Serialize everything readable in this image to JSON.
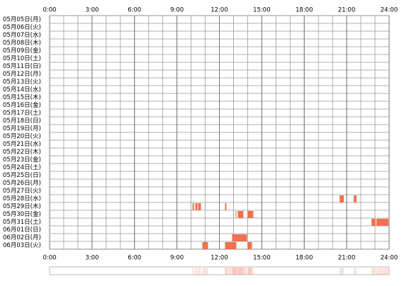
{
  "chart_data": {
    "type": "timeline",
    "categories": [
      "05月05日(月)",
      "05月06日(火)",
      "05月07日(水)",
      "05月08日(木)",
      "05月09日(金)",
      "05月10日(土)",
      "05月11日(日)",
      "05月12日(月)",
      "05月13日(火)",
      "05月14日(水)",
      "05月15日(木)",
      "05月16日(金)",
      "05月17日(土)",
      "05月18日(日)",
      "05月19日(月)",
      "05月20日(火)",
      "05月21日(水)",
      "05月22日(木)",
      "05月23日(金)",
      "05月24日(土)",
      "05月25日(日)",
      "05月26日(月)",
      "05月27日(火)",
      "05月28日(水)",
      "05月29日(木)",
      "05月30日(金)",
      "05月31日(土)",
      "06月01日(日)",
      "06月02日(月)",
      "06月03日(火)"
    ],
    "segments": [
      [],
      [],
      [],
      [],
      [],
      [],
      [],
      [],
      [],
      [],
      [],
      [],
      [],
      [],
      [],
      [],
      [],
      [],
      [],
      [],
      [],
      [],
      [],
      [
        [
          20.5,
          20.8
        ],
        [
          21.5,
          21.7
        ]
      ],
      [
        [
          10.1,
          10.2
        ],
        [
          10.3,
          10.45
        ],
        [
          10.5,
          10.7
        ],
        [
          12.4,
          12.5
        ]
      ],
      [
        [
          13.15,
          13.2
        ],
        [
          13.3,
          13.7
        ],
        [
          14.0,
          14.4
        ]
      ],
      [
        [
          22.75,
          23.05
        ],
        [
          23.1,
          23.95
        ]
      ],
      [],
      [
        [
          12.9,
          13.95
        ]
      ],
      [
        [
          10.8,
          11.2
        ],
        [
          12.4,
          13.2
        ],
        [
          14.0,
          14.3
        ]
      ]
    ],
    "color": "#f07050",
    "xlim": [
      0,
      24
    ],
    "xticks": [
      {
        "value": 0,
        "label": "0:00"
      },
      {
        "value": 3,
        "label": "3:00"
      },
      {
        "value": 6,
        "label": "6:00"
      },
      {
        "value": 9,
        "label": "9:00"
      },
      {
        "value": 12,
        "label": "12:00"
      },
      {
        "value": 15,
        "label": "15:00"
      },
      {
        "value": 18,
        "label": "18:00"
      },
      {
        "value": 21,
        "label": "21:00"
      },
      {
        "value": 24,
        "label": "24:00"
      }
    ],
    "grid": true
  }
}
